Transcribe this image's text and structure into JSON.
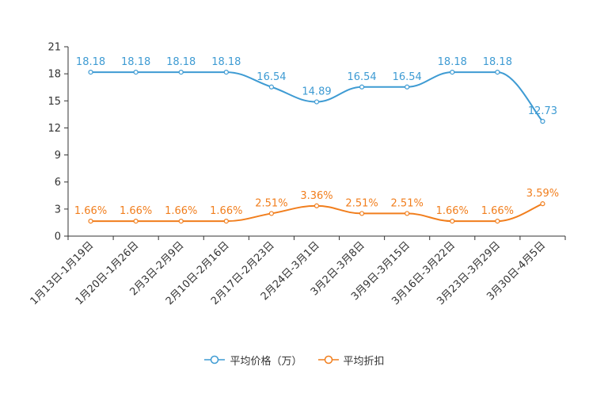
{
  "chart_data": {
    "type": "line",
    "categories": [
      "1月13日-1月19日",
      "1月20日-1月26日",
      "2月3日-2月9日",
      "2月10日-2月16日",
      "2月17日-2月23日",
      "2月24日-3月1日",
      "3月2日-3月8日",
      "3月9日-3月15日",
      "3月16日-3月22日",
      "3月23日-3月29日",
      "3月30日-4月5日"
    ],
    "series": [
      {
        "name": "平均价格（万）",
        "color": "#3e9bd3",
        "values": [
          18.18,
          18.18,
          18.18,
          18.18,
          16.54,
          14.89,
          16.54,
          16.54,
          18.18,
          18.18,
          12.73
        ],
        "labels": [
          "18.18",
          "18.18",
          "18.18",
          "18.18",
          "16.54",
          "14.89",
          "16.54",
          "16.54",
          "18.18",
          "18.18",
          "12.73"
        ]
      },
      {
        "name": "平均折扣",
        "color": "#f17e1d",
        "values": [
          1.66,
          1.66,
          1.66,
          1.66,
          2.51,
          3.36,
          2.51,
          2.51,
          1.66,
          1.66,
          3.59
        ],
        "labels": [
          "1.66%",
          "1.66%",
          "1.66%",
          "1.66%",
          "2.51%",
          "3.36%",
          "2.51%",
          "2.51%",
          "1.66%",
          "1.66%",
          "3.59%"
        ]
      }
    ],
    "yticks": [
      "0",
      "3",
      "6",
      "9",
      "12",
      "15",
      "18",
      "21"
    ],
    "ylim": [
      0,
      21
    ],
    "legend_position": "bottom"
  }
}
